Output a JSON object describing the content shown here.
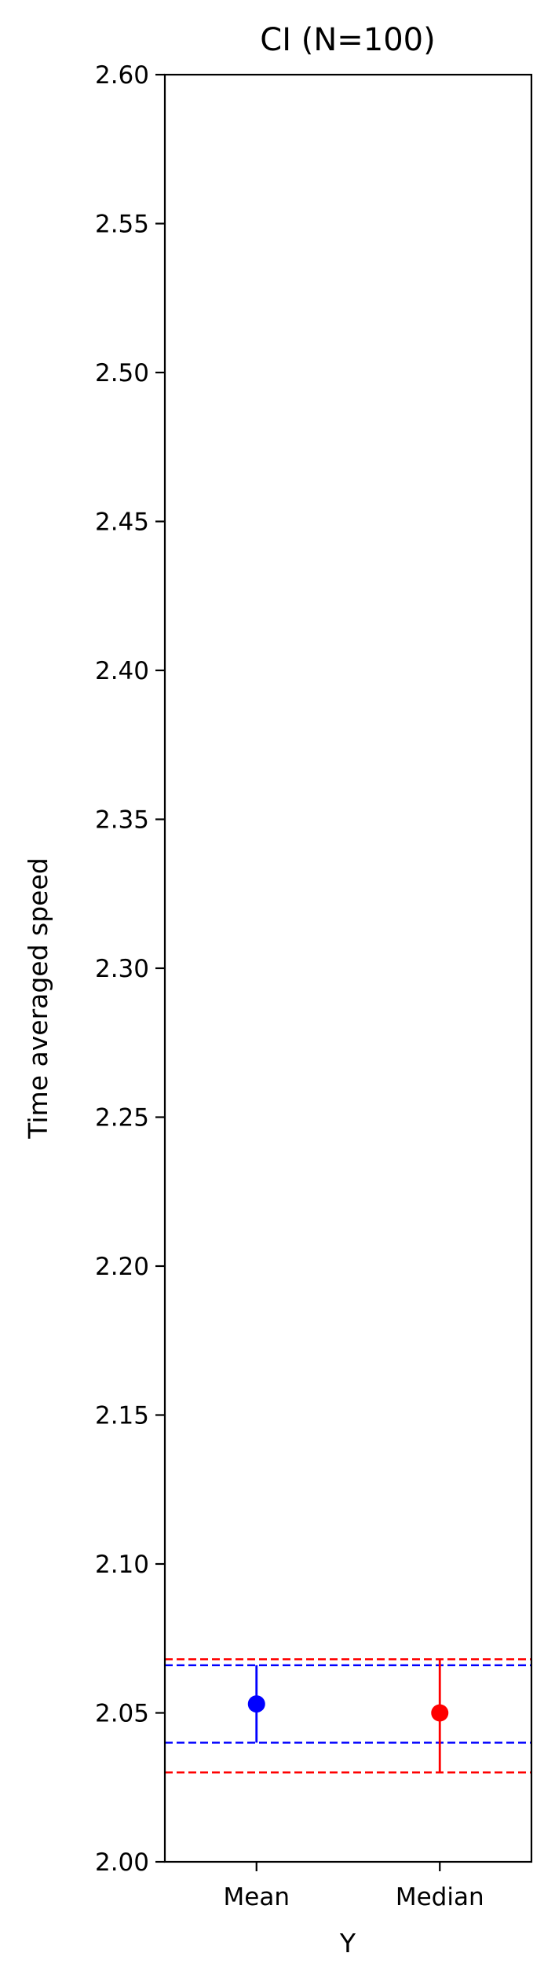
{
  "chart_data": {
    "type": "scatter",
    "title": "CI (N=100)",
    "xlabel": "Y",
    "ylabel": "Time averaged speed",
    "ylim": [
      2.0,
      2.6
    ],
    "yticks": [
      "2.00",
      "2.05",
      "2.10",
      "2.15",
      "2.20",
      "2.25",
      "2.30",
      "2.35",
      "2.40",
      "2.45",
      "2.50",
      "2.55",
      "2.60"
    ],
    "categories": [
      "Mean",
      "Median"
    ],
    "grid": false,
    "points": [
      {
        "category": "Mean",
        "value": 2.053,
        "ci_low": 2.04,
        "ci_high": 2.066,
        "color": "#0000ff"
      },
      {
        "category": "Median",
        "value": 2.05,
        "ci_low": 2.03,
        "ci_high": 2.068,
        "color": "#ff0000"
      }
    ],
    "reference_lines": [
      {
        "value": 2.068,
        "color": "#ff0000",
        "style": "dashed"
      },
      {
        "value": 2.066,
        "color": "#0000ff",
        "style": "dashed"
      },
      {
        "value": 2.04,
        "color": "#0000ff",
        "style": "dashed"
      },
      {
        "value": 2.03,
        "color": "#ff0000",
        "style": "dashed"
      }
    ]
  }
}
